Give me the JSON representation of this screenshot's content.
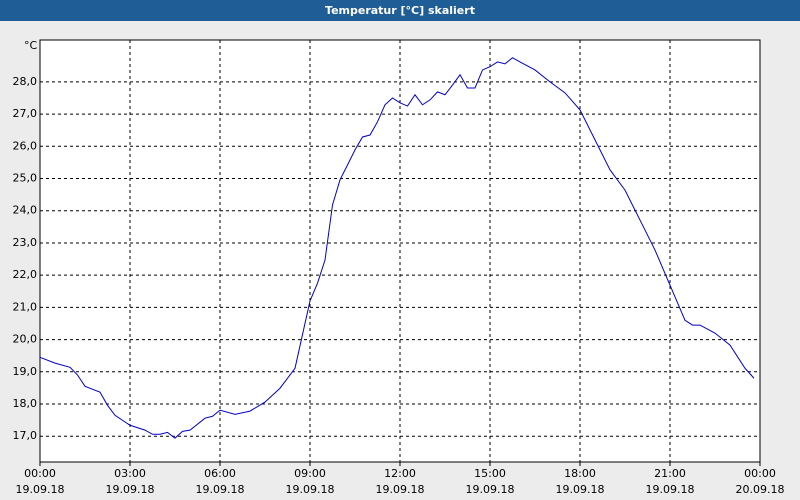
{
  "chart_data": {
    "type": "line",
    "title": "Temperatur [°C] skaliert",
    "y_label": "°C",
    "x": [
      0,
      0.5,
      1,
      1.25,
      1.5,
      2,
      2.25,
      2.5,
      3,
      3.5,
      3.75,
      4,
      4.25,
      4.5,
      4.75,
      5,
      5.5,
      5.75,
      6,
      6.5,
      7,
      7.5,
      8,
      8.5,
      9,
      9.25,
      9.5,
      9.75,
      10,
      10.25,
      10.5,
      10.75,
      11,
      11.25,
      11.5,
      11.75,
      12,
      12.25,
      12.5,
      12.75,
      13,
      13.25,
      13.5,
      13.75,
      14,
      14.25,
      14.5,
      14.75,
      15,
      15.25,
      15.5,
      15.75,
      16,
      16.5,
      17,
      17.5,
      18,
      18.5,
      19,
      19.5,
      20,
      20.5,
      21,
      21.5,
      21.75,
      22,
      22.5,
      23,
      23.5,
      23.8
    ],
    "series": [
      {
        "name": "Temperatur",
        "color": "#0000cc",
        "values": [
          19.45,
          19.27,
          19.14,
          18.9,
          18.55,
          18.37,
          17.96,
          17.65,
          17.34,
          17.19,
          17.06,
          17.06,
          17.12,
          16.94,
          17.15,
          17.19,
          17.56,
          17.62,
          17.81,
          17.68,
          17.78,
          18.06,
          18.49,
          19.11,
          21.2,
          21.75,
          22.47,
          24.18,
          24.96,
          25.42,
          25.89,
          26.29,
          26.35,
          26.76,
          27.29,
          27.5,
          27.35,
          27.25,
          27.6,
          27.29,
          27.44,
          27.69,
          27.6,
          27.9,
          28.22,
          27.81,
          27.81,
          28.37,
          28.47,
          28.62,
          28.56,
          28.75,
          28.62,
          28.37,
          28.0,
          27.66,
          27.13,
          26.2,
          25.27,
          24.64,
          23.71,
          22.78,
          21.69,
          20.6,
          20.45,
          20.45,
          20.2,
          19.83,
          19.11,
          18.8
        ]
      }
    ],
    "xlim": [
      0,
      24
    ],
    "ylim": [
      16.2,
      29.3
    ],
    "xticks": [
      {
        "value": 0,
        "label": [
          "00:00",
          "19.09.18"
        ]
      },
      {
        "value": 3,
        "label": [
          "03:00",
          "19.09.18"
        ]
      },
      {
        "value": 6,
        "label": [
          "06:00",
          "19.09.18"
        ]
      },
      {
        "value": 9,
        "label": [
          "09:00",
          "19.09.18"
        ]
      },
      {
        "value": 12,
        "label": [
          "12:00",
          "19.09.18"
        ]
      },
      {
        "value": 15,
        "label": [
          "15:00",
          "19.09.18"
        ]
      },
      {
        "value": 18,
        "label": [
          "18:00",
          "19.09.18"
        ]
      },
      {
        "value": 21,
        "label": [
          "21:00",
          "19.09.18"
        ]
      },
      {
        "value": 24,
        "label": [
          "00:00",
          "20.09.18"
        ]
      }
    ],
    "yticks": [
      {
        "value": 17,
        "label": "17,0"
      },
      {
        "value": 18,
        "label": "18,0"
      },
      {
        "value": 19,
        "label": "19,0"
      },
      {
        "value": 20,
        "label": "20,0"
      },
      {
        "value": 21,
        "label": "21,0"
      },
      {
        "value": 22,
        "label": "22,0"
      },
      {
        "value": 23,
        "label": "23,0"
      },
      {
        "value": 24,
        "label": "24,0"
      },
      {
        "value": 25,
        "label": "25,0"
      },
      {
        "value": 26,
        "label": "26,0"
      },
      {
        "value": 27,
        "label": "27,0"
      },
      {
        "value": 28,
        "label": "28,0"
      }
    ],
    "grid": true
  }
}
